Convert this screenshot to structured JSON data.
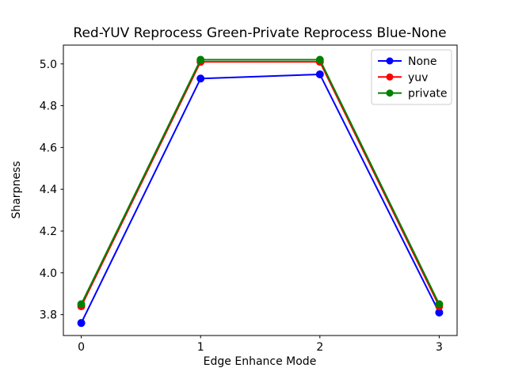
{
  "chart_data": {
    "type": "line",
    "title": "Red-YUV Reprocess  Green-Private Reprocess  Blue-None",
    "xlabel": "Edge Enhance Mode",
    "ylabel": "Sharpness",
    "x": [
      0,
      1,
      2,
      3
    ],
    "series": [
      {
        "name": "None",
        "color": "#0000ff",
        "values": [
          3.76,
          4.93,
          4.95,
          3.81
        ]
      },
      {
        "name": "yuv",
        "color": "#ff0000",
        "values": [
          3.84,
          5.01,
          5.01,
          3.84
        ]
      },
      {
        "name": "private",
        "color": "#008000",
        "values": [
          3.85,
          5.02,
          5.02,
          3.85
        ]
      }
    ],
    "xticks": [
      0,
      1,
      2,
      3
    ],
    "yticks": [
      3.8,
      4.0,
      4.2,
      4.4,
      4.6,
      4.8,
      5.0
    ],
    "xlim": [
      -0.15,
      3.15
    ],
    "ylim": [
      3.7,
      5.09
    ],
    "grid": false,
    "legend_position": "upper right",
    "marker": "circle"
  }
}
